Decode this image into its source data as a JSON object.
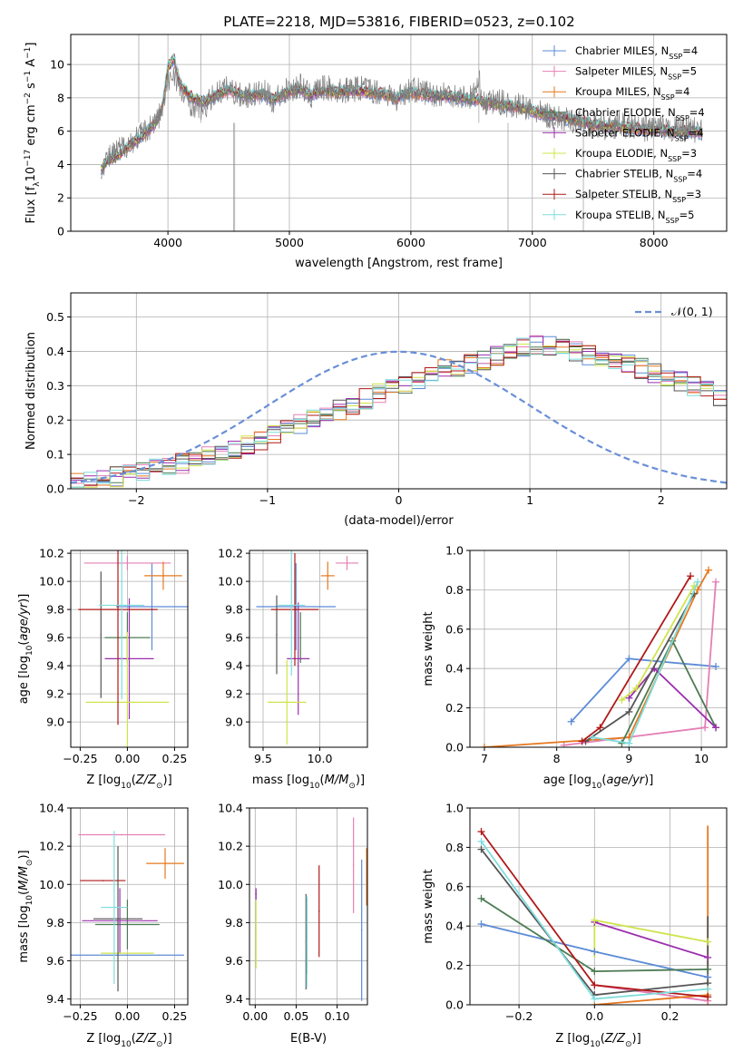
{
  "figure_title": "PLATE=2218, MJD=53816, FIBERID=0523, z=0.102",
  "colors": {
    "Chabrier MILES": "#5b8bd6",
    "Salpeter MILES": "#e57fb5",
    "Kroupa MILES": "#e6781f",
    "Chabrier ELODIE": "#4c7b52",
    "Salpeter ELODIE": "#9b2fae",
    "Kroupa ELODIE": "#cfe44a",
    "Chabrier STELIB": "#555555",
    "Salpeter STELIB": "#b01818",
    "Kroupa STELIB": "#7fdcdc"
  },
  "chart_data": [
    {
      "id": "spectrum",
      "type": "line",
      "title": "PLATE=2218, MJD=53816, FIBERID=0523, z=0.102",
      "xlabel": "wavelength [Angstrom, rest frame]",
      "ylabel_parts": [
        "Flux [f",
        "λ",
        "10",
        "−17",
        " erg cm",
        "−2",
        " s",
        "−1",
        " A",
        "−1",
        "]"
      ],
      "xlim": [
        3200,
        8600
      ],
      "ylim": [
        0,
        11.8
      ],
      "xticks": [
        4000,
        5000,
        6000,
        7000,
        8000
      ],
      "yticks": [
        0,
        2,
        4,
        6,
        8,
        10
      ],
      "legend_position": "top-right",
      "legend": [
        {
          "name": "Chabrier MILES",
          "nssp": 4
        },
        {
          "name": "Salpeter MILES",
          "nssp": 5
        },
        {
          "name": "Kroupa MILES",
          "nssp": 4
        },
        {
          "name": "Chabrier ELODIE",
          "nssp": 4
        },
        {
          "name": "Salpeter ELODIE",
          "nssp": 4
        },
        {
          "name": "Kroupa ELODIE",
          "nssp": 3
        },
        {
          "name": "Chabrier STELIB",
          "nssp": 4
        },
        {
          "name": "Salpeter STELIB",
          "nssp": 3
        },
        {
          "name": "Kroupa STELIB",
          "nssp": 5
        }
      ],
      "data_series": {
        "name": "data",
        "color": "#7f7f7f",
        "x": [
          3450,
          3500,
          3600,
          3700,
          3800,
          3900,
          3950,
          4000,
          4050,
          4100,
          4200,
          4300,
          4400,
          4500,
          4600,
          4700,
          4800,
          4861,
          4900,
          5000,
          5100,
          5175,
          5200,
          5300,
          5400,
          5500,
          5600,
          5700,
          5800,
          5890,
          5900,
          6000,
          6100,
          6200,
          6300,
          6400,
          6500,
          6563,
          6600,
          6700,
          6800,
          6900,
          7000,
          7100,
          7200,
          7300,
          7400,
          7500,
          7600,
          7700,
          7800,
          7900,
          8000,
          8100,
          8200,
          8300,
          8400
        ],
        "y": [
          3.9,
          4.3,
          4.9,
          5.4,
          5.9,
          6.6,
          7.2,
          8.9,
          9.6,
          8.4,
          7.6,
          7.4,
          8.3,
          8.6,
          8.1,
          8.2,
          8.3,
          7.8,
          8.1,
          8.5,
          8.7,
          8.0,
          8.4,
          8.6,
          8.4,
          8.5,
          8.6,
          8.4,
          8.3,
          7.8,
          8.2,
          8.5,
          8.4,
          8.2,
          8.3,
          8.1,
          8.0,
          8.9,
          7.6,
          7.8,
          7.6,
          7.5,
          7.2,
          7.0,
          6.8,
          6.6,
          6.7,
          6.4,
          6.1,
          6.4,
          6.3,
          6.1,
          6.3,
          6.0,
          6.2,
          6.1,
          6.0
        ]
      },
      "model_x": [
        3450,
        3500,
        3600,
        3700,
        3800,
        3900,
        3950,
        4000,
        4050,
        4100,
        4200,
        4300,
        4400,
        4500,
        4600,
        4700,
        4800,
        4861,
        4900,
        5000,
        5100,
        5175,
        5200,
        5300,
        5400,
        5500,
        5600,
        5700,
        5800,
        5890,
        5900,
        6000,
        6100,
        6200,
        6300,
        6400,
        6500,
        6563,
        6600,
        6700,
        6800,
        6900,
        7000,
        7100,
        7200,
        7300,
        7400,
        7500,
        7600,
        7700,
        7800,
        7900,
        8000,
        8100,
        8200,
        8300,
        8400
      ],
      "model_y": [
        3.8,
        4.2,
        4.6,
        5.2,
        5.8,
        6.5,
        7.3,
        9.8,
        10.4,
        8.8,
        8.0,
        7.7,
        8.2,
        8.5,
        8.2,
        8.1,
        8.2,
        7.9,
        8.0,
        8.4,
        8.5,
        8.1,
        8.3,
        8.4,
        8.3,
        8.4,
        8.4,
        8.3,
        8.2,
        7.9,
        8.1,
        8.3,
        8.2,
        8.1,
        8.1,
        8.0,
        7.9,
        7.9,
        7.7,
        7.6,
        7.5,
        7.4,
        7.2,
        7.0,
        6.9,
        6.7,
        6.6,
        6.4,
        6.3,
        6.3,
        6.2,
        6.1,
        6.1,
        6.0,
        6.0,
        6.0,
        5.9
      ]
    },
    {
      "id": "residuals",
      "type": "line",
      "xlabel": "(data-model)/error",
      "ylabel": "Normed distribution",
      "xlim": [
        -2.5,
        2.5
      ],
      "ylim": [
        0,
        0.57
      ],
      "xticks": [
        -2,
        -1,
        0,
        1,
        2
      ],
      "yticks": [
        0.0,
        0.1,
        0.2,
        0.3,
        0.4,
        0.5
      ],
      "legend_position": "top-right",
      "legend": [
        {
          "name": "𝒩(0, 1)",
          "style": "dashed"
        }
      ],
      "bin_width": 0.1,
      "bin_start": -2.5,
      "histogram": [
        0.02,
        0.024,
        0.031,
        0.036,
        0.042,
        0.05,
        0.058,
        0.066,
        0.075,
        0.085,
        0.095,
        0.106,
        0.118,
        0.13,
        0.143,
        0.158,
        0.172,
        0.186,
        0.201,
        0.216,
        0.231,
        0.246,
        0.262,
        0.278,
        0.293,
        0.307,
        0.321,
        0.334,
        0.346,
        0.357,
        0.366,
        0.372,
        0.385,
        0.395,
        0.41,
        0.42,
        0.415,
        0.405,
        0.398,
        0.39,
        0.382,
        0.372,
        0.362,
        0.35,
        0.338,
        0.325,
        0.311,
        0.297,
        0.283,
        0.268
      ]
    },
    {
      "id": "age-vs-Z",
      "type": "scatter",
      "xlabel": "Z [log10(Z/Z⊙)]",
      "ylabel": "age  [log10(age/yr)]",
      "xlim": [
        -0.3,
        0.32
      ],
      "ylim": [
        8.82,
        10.22
      ],
      "xticks": [
        -0.25,
        0.0,
        0.25
      ],
      "yticks": [
        9.0,
        9.2,
        9.4,
        9.6,
        9.8,
        10.0,
        10.2
      ],
      "points": [
        {
          "series": "Chabrier MILES",
          "x": 0.13,
          "xerr": 0.19,
          "y": 9.82,
          "yerr": 0.31
        },
        {
          "series": "Salpeter MILES",
          "x": 0.0,
          "xerr": 0.23,
          "y": 10.13,
          "yerr": 0.05
        },
        {
          "series": "Kroupa MILES",
          "x": 0.19,
          "xerr": 0.1,
          "y": 10.04,
          "yerr": 0.1
        },
        {
          "series": "Chabrier ELODIE",
          "x": 0.0,
          "xerr": 0.12,
          "y": 9.6,
          "yerr": 0.18
        },
        {
          "series": "Salpeter ELODIE",
          "x": 0.01,
          "xerr": 0.13,
          "y": 9.45,
          "yerr": 0.43
        },
        {
          "series": "Kroupa ELODIE",
          "x": 0.0,
          "xerr": 0.22,
          "y": 9.14,
          "yerr": 0.5
        },
        {
          "series": "Chabrier STELIB",
          "x": -0.14,
          "xerr": 0.0,
          "y": 9.62,
          "yerr": 0.45
        },
        {
          "series": "Salpeter STELIB",
          "x": -0.05,
          "xerr": 0.21,
          "y": 9.8,
          "yerr": 0.82
        },
        {
          "series": "Kroupa STELIB",
          "x": -0.03,
          "xerr": 0.12,
          "y": 9.83,
          "yerr": 0.67
        }
      ]
    },
    {
      "id": "age-vs-mass",
      "type": "scatter",
      "xlabel": "mass [log10(M/M⊙)]",
      "xlim": [
        9.38,
        10.42
      ],
      "ylim": [
        8.82,
        10.22
      ],
      "xticks": [
        9.5,
        10.0
      ],
      "yticks": [
        9.0,
        9.2,
        9.4,
        9.6,
        9.8,
        10.0,
        10.2
      ],
      "points": [
        {
          "series": "Chabrier MILES",
          "x": 9.79,
          "xerr": 0.35,
          "y": 9.82,
          "yerr": 0.31
        },
        {
          "series": "Salpeter MILES",
          "x": 10.24,
          "xerr": 0.1,
          "y": 10.13,
          "yerr": 0.05
        },
        {
          "series": "Kroupa MILES",
          "x": 10.07,
          "xerr": 0.06,
          "y": 10.04,
          "yerr": 0.1
        },
        {
          "series": "Chabrier ELODIE",
          "x": 9.83,
          "xerr": 0.0,
          "y": 9.6,
          "yerr": 0.18
        },
        {
          "series": "Salpeter ELODIE",
          "x": 9.81,
          "xerr": 0.1,
          "y": 9.45,
          "yerr": 0.4
        },
        {
          "series": "Kroupa ELODIE",
          "x": 9.71,
          "xerr": 0.17,
          "y": 9.14,
          "yerr": 0.3
        },
        {
          "series": "Chabrier STELIB",
          "x": 9.62,
          "xerr": 0.0,
          "y": 9.62,
          "yerr": 0.28
        },
        {
          "series": "Salpeter STELIB",
          "x": 9.78,
          "xerr": 0.21,
          "y": 9.8,
          "yerr": 0.4
        },
        {
          "series": "Kroupa STELIB",
          "x": 9.75,
          "xerr": 0.12,
          "y": 9.83,
          "yerr": 0.5
        }
      ]
    },
    {
      "id": "weight-vs-age",
      "type": "line",
      "xlabel": "age  [log10(age/yr)]",
      "ylabel": "mass weight",
      "xlim": [
        6.8,
        10.35
      ],
      "ylim": [
        0.0,
        1.0
      ],
      "xticks": [
        7,
        8,
        9,
        10
      ],
      "yticks": [
        0.0,
        0.2,
        0.4,
        0.6,
        0.8,
        1.0
      ],
      "series": [
        {
          "name": "Chabrier MILES",
          "x": [
            8.2,
            9.0,
            10.2
          ],
          "y": [
            0.13,
            0.45,
            0.41
          ]
        },
        {
          "name": "Salpeter MILES",
          "x": [
            8.1,
            10.05,
            10.2
          ],
          "y": [
            0.01,
            0.1,
            0.84
          ]
        },
        {
          "name": "Kroupa MILES",
          "x": [
            7.0,
            9.0,
            9.95,
            10.1
          ],
          "y": [
            0.0,
            0.05,
            0.8,
            0.9
          ]
        },
        {
          "name": "Chabrier ELODIE",
          "x": [
            8.9,
            9.6,
            10.2
          ],
          "y": [
            0.02,
            0.54,
            0.1
          ]
        },
        {
          "name": "Salpeter ELODIE",
          "x": [
            9.0,
            9.35,
            10.2
          ],
          "y": [
            0.25,
            0.4,
            0.1
          ]
        },
        {
          "name": "Kroupa ELODIE",
          "x": [
            8.9,
            9.1,
            9.9
          ],
          "y": [
            0.24,
            0.3,
            0.82
          ]
        },
        {
          "name": "Chabrier STELIB",
          "x": [
            8.4,
            9.0,
            9.9
          ],
          "y": [
            0.03,
            0.18,
            0.78
          ]
        },
        {
          "name": "Salpeter STELIB",
          "x": [
            8.35,
            8.6,
            9.85
          ],
          "y": [
            0.03,
            0.1,
            0.87
          ]
        },
        {
          "name": "Kroupa STELIB",
          "x": [
            8.5,
            9.0,
            9.95
          ],
          "y": [
            0.05,
            0.02,
            0.84
          ]
        }
      ]
    },
    {
      "id": "mass-vs-Z",
      "type": "scatter",
      "xlabel": "Z [log10(Z/Z⊙)]",
      "ylabel": "mass [log10(M/M⊙)]",
      "xlim": [
        -0.3,
        0.32
      ],
      "ylim": [
        9.37,
        10.4
      ],
      "xticks": [
        -0.25,
        0.0,
        0.25
      ],
      "yticks": [
        9.4,
        9.6,
        9.8,
        10.0,
        10.2,
        10.4
      ],
      "points": [
        {
          "series": "Chabrier MILES",
          "x": 0.0,
          "xerr": 0.3,
          "y": 9.63,
          "yerr": 0.0
        },
        {
          "series": "Salpeter MILES",
          "x": -0.03,
          "xerr": 0.23,
          "y": 10.26,
          "yerr": 0.0
        },
        {
          "series": "Kroupa MILES",
          "x": 0.2,
          "xerr": 0.1,
          "y": 10.11,
          "yerr": 0.08
        },
        {
          "series": "Chabrier ELODIE",
          "x": 0.0,
          "xerr": 0.17,
          "y": 9.79,
          "yerr": 0.13
        },
        {
          "series": "Salpeter ELODIE",
          "x": -0.04,
          "xerr": 0.2,
          "y": 9.81,
          "yerr": 0.17
        },
        {
          "series": "Kroupa ELODIE",
          "x": 0.0,
          "xerr": 0.14,
          "y": 9.64,
          "yerr": 0.0
        },
        {
          "series": "Chabrier STELIB",
          "x": -0.05,
          "xerr": 0.13,
          "y": 9.82,
          "yerr": 0.38
        },
        {
          "series": "Salpeter STELIB",
          "x": -0.13,
          "xerr": 0.12,
          "y": 10.02,
          "yerr": 0.0
        },
        {
          "series": "Kroupa STELIB",
          "x": -0.07,
          "xerr": 0.07,
          "y": 9.88,
          "yerr": 0.4
        }
      ]
    },
    {
      "id": "mass-vs-ebv",
      "type": "scatter",
      "xlabel": "E(B-V)",
      "xlim": [
        -0.007,
        0.137
      ],
      "ylim": [
        9.37,
        10.4
      ],
      "xticks": [
        0.0,
        0.05,
        0.1
      ],
      "yticks": [
        9.4,
        9.6,
        9.8,
        10.0,
        10.2,
        10.4
      ],
      "points": [
        {
          "series": "Chabrier MILES",
          "x": 0.13,
          "y": 9.76,
          "yerr": 0.37
        },
        {
          "series": "Salpeter MILES",
          "x": 0.12,
          "y": 10.1,
          "yerr": 0.25
        },
        {
          "series": "Kroupa MILES",
          "x": 0.136,
          "y": 10.04,
          "yerr": 0.15
        },
        {
          "series": "Chabrier ELODIE",
          "x": 0.063,
          "y": 9.73,
          "yerr": 0.2
        },
        {
          "series": "Salpeter ELODIE",
          "x": 0.001,
          "y": 9.95,
          "yerr": 0.03
        },
        {
          "series": "Kroupa ELODIE",
          "x": 0.001,
          "y": 9.74,
          "yerr": 0.18
        },
        {
          "series": "Chabrier STELIB",
          "x": 0.062,
          "y": 9.7,
          "yerr": 0.25
        },
        {
          "series": "Salpeter STELIB",
          "x": 0.078,
          "y": 9.86,
          "yerr": 0.24
        },
        {
          "series": "Kroupa STELIB",
          "x": 0.063,
          "y": 9.7,
          "yerr": 0.24
        }
      ]
    },
    {
      "id": "weight-vs-Z",
      "type": "line",
      "xlabel": "Z [log10(Z/Z⊙)]",
      "ylabel": "mass weight",
      "xlim": [
        -0.33,
        0.35
      ],
      "ylim": [
        0.0,
        1.0
      ],
      "xticks": [
        -0.2,
        0.0,
        0.2
      ],
      "yticks": [
        0.0,
        0.2,
        0.4,
        0.6,
        0.8,
        1.0
      ],
      "series": [
        {
          "name": "Chabrier MILES",
          "x": [
            -0.3,
            0.0,
            0.3
          ],
          "y": [
            0.41,
            0.27,
            0.14
          ]
        },
        {
          "name": "Salpeter MILES",
          "x": [
            0.0,
            0.3
          ],
          "y": [
            0.1,
            0.02
          ]
        },
        {
          "name": "Kroupa MILES",
          "x": [
            0.0,
            0.3
          ],
          "y": [
            0.0,
            0.05
          ]
        },
        {
          "name": "Chabrier ELODIE",
          "x": [
            -0.3,
            0.0,
            0.3
          ],
          "y": [
            0.54,
            0.17,
            0.18
          ]
        },
        {
          "name": "Salpeter ELODIE",
          "x": [
            0.0,
            0.3
          ],
          "y": [
            0.42,
            0.24
          ]
        },
        {
          "name": "Kroupa ELODIE",
          "x": [
            0.0,
            0.3
          ],
          "y": [
            0.43,
            0.32
          ]
        },
        {
          "name": "Chabrier STELIB",
          "x": [
            -0.3,
            0.0,
            0.3
          ],
          "y": [
            0.79,
            0.05,
            0.11
          ]
        },
        {
          "name": "Salpeter STELIB",
          "x": [
            -0.3,
            0.0,
            0.3
          ],
          "y": [
            0.88,
            0.1,
            0.04
          ]
        },
        {
          "name": "Kroupa STELIB",
          "x": [
            -0.3,
            0.0,
            0.3
          ],
          "y": [
            0.83,
            0.03,
            0.08
          ]
        }
      ],
      "vertical_spans": [
        {
          "series": "Kroupa MILES",
          "x": 0.3,
          "y0": 0.0,
          "y1": 0.91
        },
        {
          "series": "Kroupa ELODIE",
          "x": 0.0,
          "y0": 0.24,
          "y1": 0.43
        },
        {
          "series": "Chabrier STELIB",
          "x": 0.3,
          "y0": 0.1,
          "y1": 0.45
        }
      ]
    }
  ]
}
